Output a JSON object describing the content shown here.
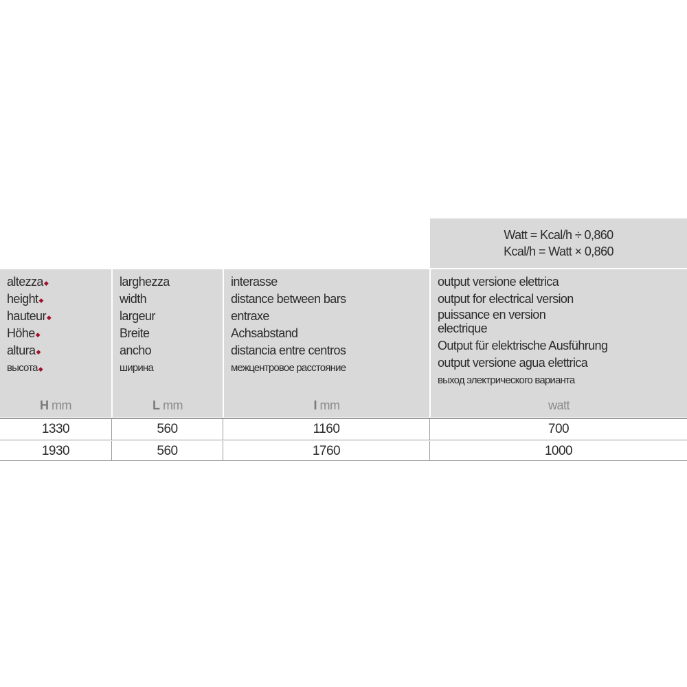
{
  "formula": {
    "line1": "Watt = Kcal/h ÷ 0,860",
    "line2": "Kcal/h = Watt × 0,860"
  },
  "columns": [
    {
      "labels": [
        "altezza",
        "height",
        "hauteur",
        "Höhe",
        "altura",
        "высота"
      ],
      "marked": true,
      "symbol": "H",
      "unit": "mm"
    },
    {
      "labels": [
        "larghezza",
        "width",
        "largeur",
        "Breite",
        "ancho",
        "ширина"
      ],
      "marked": false,
      "symbol": "L",
      "unit": "mm"
    },
    {
      "labels": [
        "interasse",
        "distance between bars",
        "entraxe",
        "Achsabstand",
        "distancia entre centros",
        "межцентровое расстояние"
      ],
      "marked": false,
      "symbol": "I",
      "unit": "mm"
    },
    {
      "labels": [
        "output versione elettrica",
        "output for electrical version",
        "puissance en version",
        "electrique",
        "Output für elektrische Ausführung",
        "output versione agua elettrica",
        "выход электрического варианта"
      ],
      "marked": false,
      "symbol": "",
      "unit": "watt"
    }
  ],
  "marker_color": "#a0122a",
  "rows": [
    [
      "1330",
      "560",
      "1160",
      "700"
    ],
    [
      "1930",
      "560",
      "1760",
      "1000"
    ]
  ]
}
